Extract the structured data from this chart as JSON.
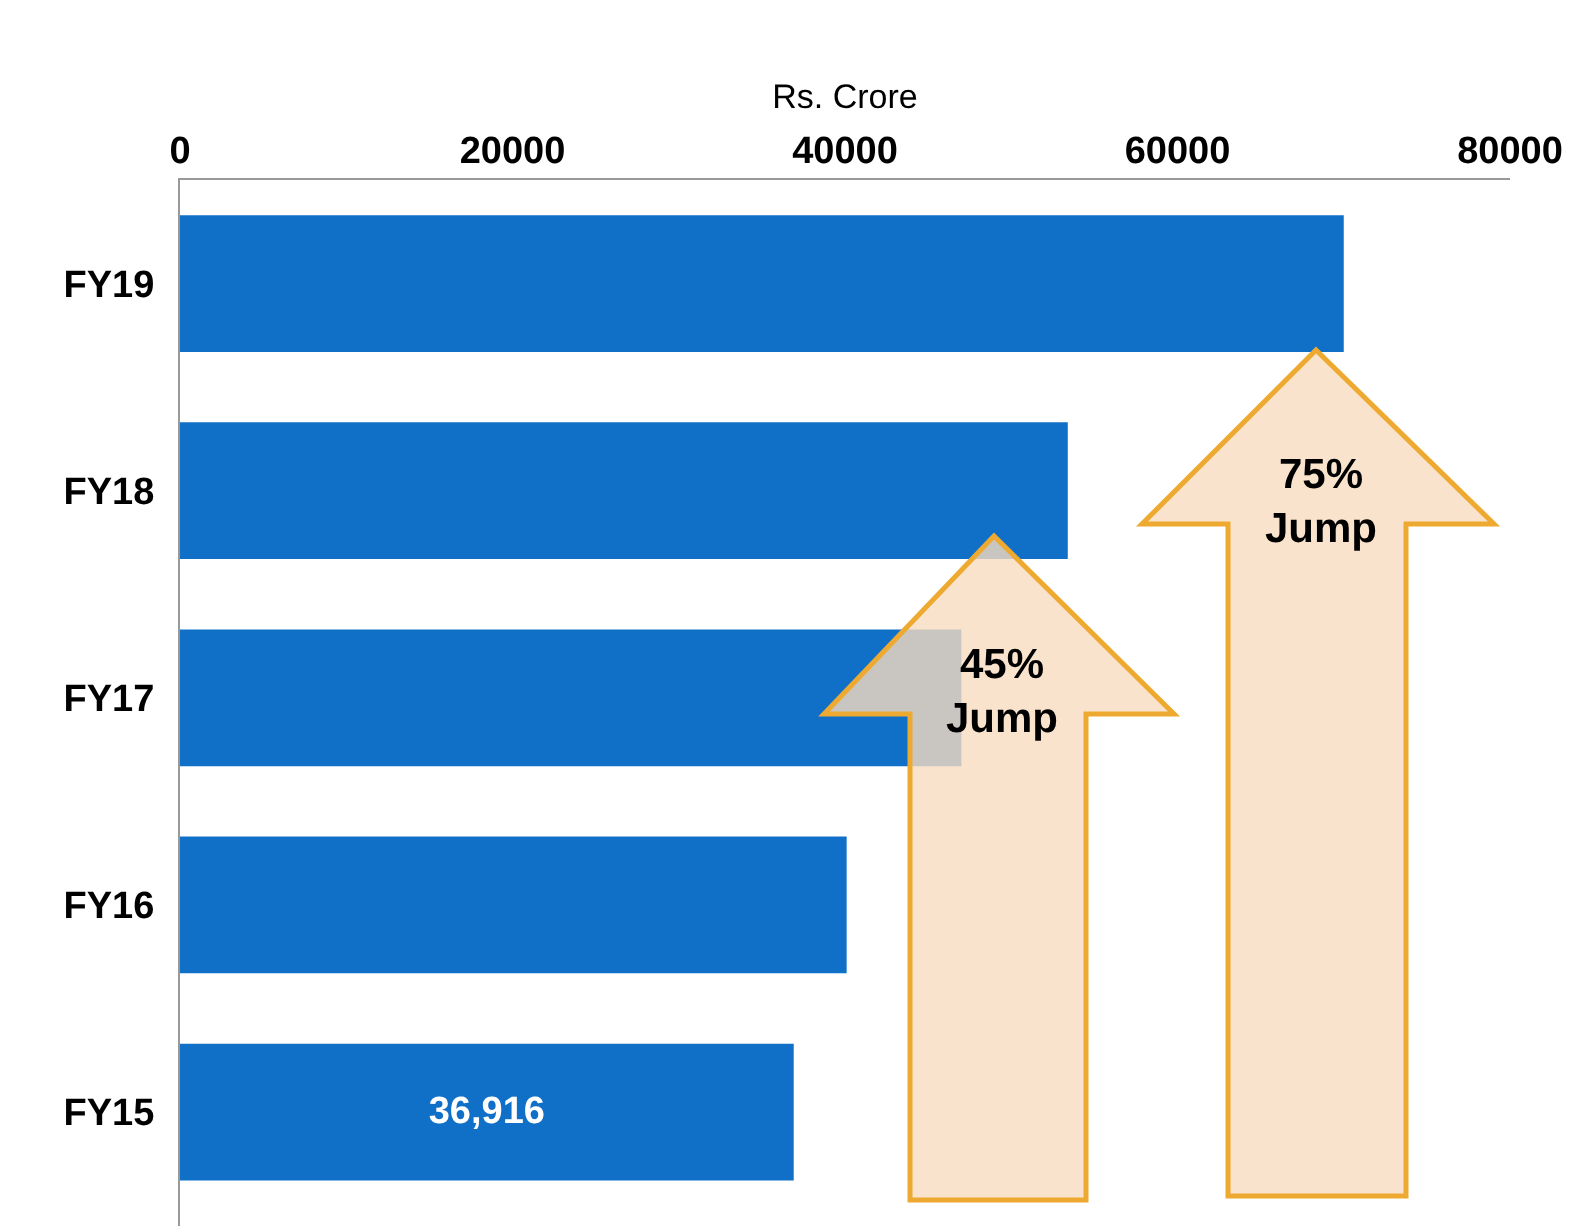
{
  "chart_data": {
    "type": "bar",
    "orientation": "horizontal",
    "xlabel": "Rs. Crore",
    "categories": [
      "FY19",
      "FY18",
      "FY17",
      "FY16",
      "FY15"
    ],
    "values": [
      70000,
      53400,
      47000,
      40100,
      36916
    ],
    "value_labels": [
      null,
      null,
      null,
      null,
      "36,916"
    ],
    "color": "#1070c8",
    "xlim": [
      0,
      80000
    ],
    "xticks": [
      0,
      20000,
      40000,
      60000,
      80000
    ],
    "grid": false,
    "annotations": [
      "45%\nJump",
      "75%\nJump"
    ]
  }
}
